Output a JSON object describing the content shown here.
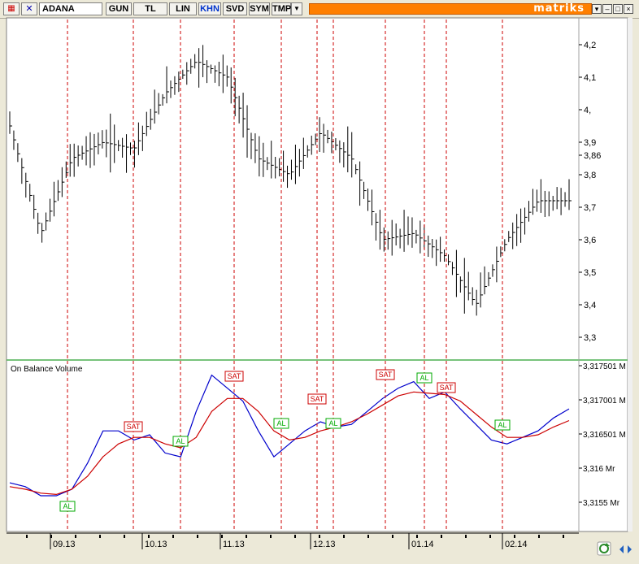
{
  "toolbar": {
    "symbol": "ADANA",
    "buttons": [
      "GUN",
      "TL",
      "LIN",
      "KHN",
      "SVD",
      "SYM",
      "TMP"
    ],
    "active_button": "KHN",
    "brand": "matriks",
    "window_controls": [
      "chevron-down-icon",
      "minimize-icon",
      "maximize-icon",
      "close-icon"
    ]
  },
  "colors": {
    "price_bars": "#000000",
    "signal_lines": "#cc0000",
    "obv_line": "#0000cc",
    "obv_average": "#cc0000",
    "buy_label": "#00aa00",
    "sell_label": "#cc0000",
    "panel_divider": "#4caf50",
    "brand_bar": "#ff7f00"
  },
  "price_axis": {
    "ticks": [
      "4,2",
      "4,1",
      "4,",
      "3,9",
      "3,86",
      "3,8",
      "3,7",
      "3,6",
      "3,5",
      "3,4",
      "3,3"
    ]
  },
  "obv_panel": {
    "title": "On Balance Volume",
    "ticks": [
      "3,317501 M",
      "3,317001 M",
      "3,316501 M",
      "3,316 Mr",
      "3,3155 Mr"
    ],
    "buy_label": "AL",
    "sell_label": "SAT"
  },
  "time_axis": {
    "labels": [
      "09.13",
      "10.13",
      "11.13",
      "12.13",
      "01.14",
      "02.14"
    ]
  },
  "chart_data": {
    "type": "line",
    "title": "ADANA",
    "x_labels": [
      "09.13",
      "10.13",
      "11.13",
      "12.13",
      "01.14",
      "02.14"
    ],
    "price_range": [
      3.3,
      4.2
    ],
    "price_close_approx": [
      3.95,
      3.62,
      3.85,
      3.9,
      3.88,
      4.05,
      4.15,
      4.1,
      3.85,
      3.8,
      3.93,
      3.85,
      3.6,
      3.62,
      3.55,
      3.4,
      3.6,
      3.72,
      3.72
    ],
    "signals": [
      {
        "label": "AL",
        "period": "09.13"
      },
      {
        "label": "SAT",
        "period": "10.13"
      },
      {
        "label": "AL",
        "period": "10.13"
      },
      {
        "label": "SAT",
        "period": "11.13"
      },
      {
        "label": "AL",
        "period": "11.13"
      },
      {
        "label": "SAT",
        "period": "12.13"
      },
      {
        "label": "AL",
        "period": "12.13"
      },
      {
        "label": "SAT",
        "period": "01.14"
      },
      {
        "label": "AL",
        "period": "01.14"
      },
      {
        "label": "SAT",
        "period": "01.14"
      },
      {
        "label": "AL",
        "period": "02.14"
      }
    ]
  }
}
